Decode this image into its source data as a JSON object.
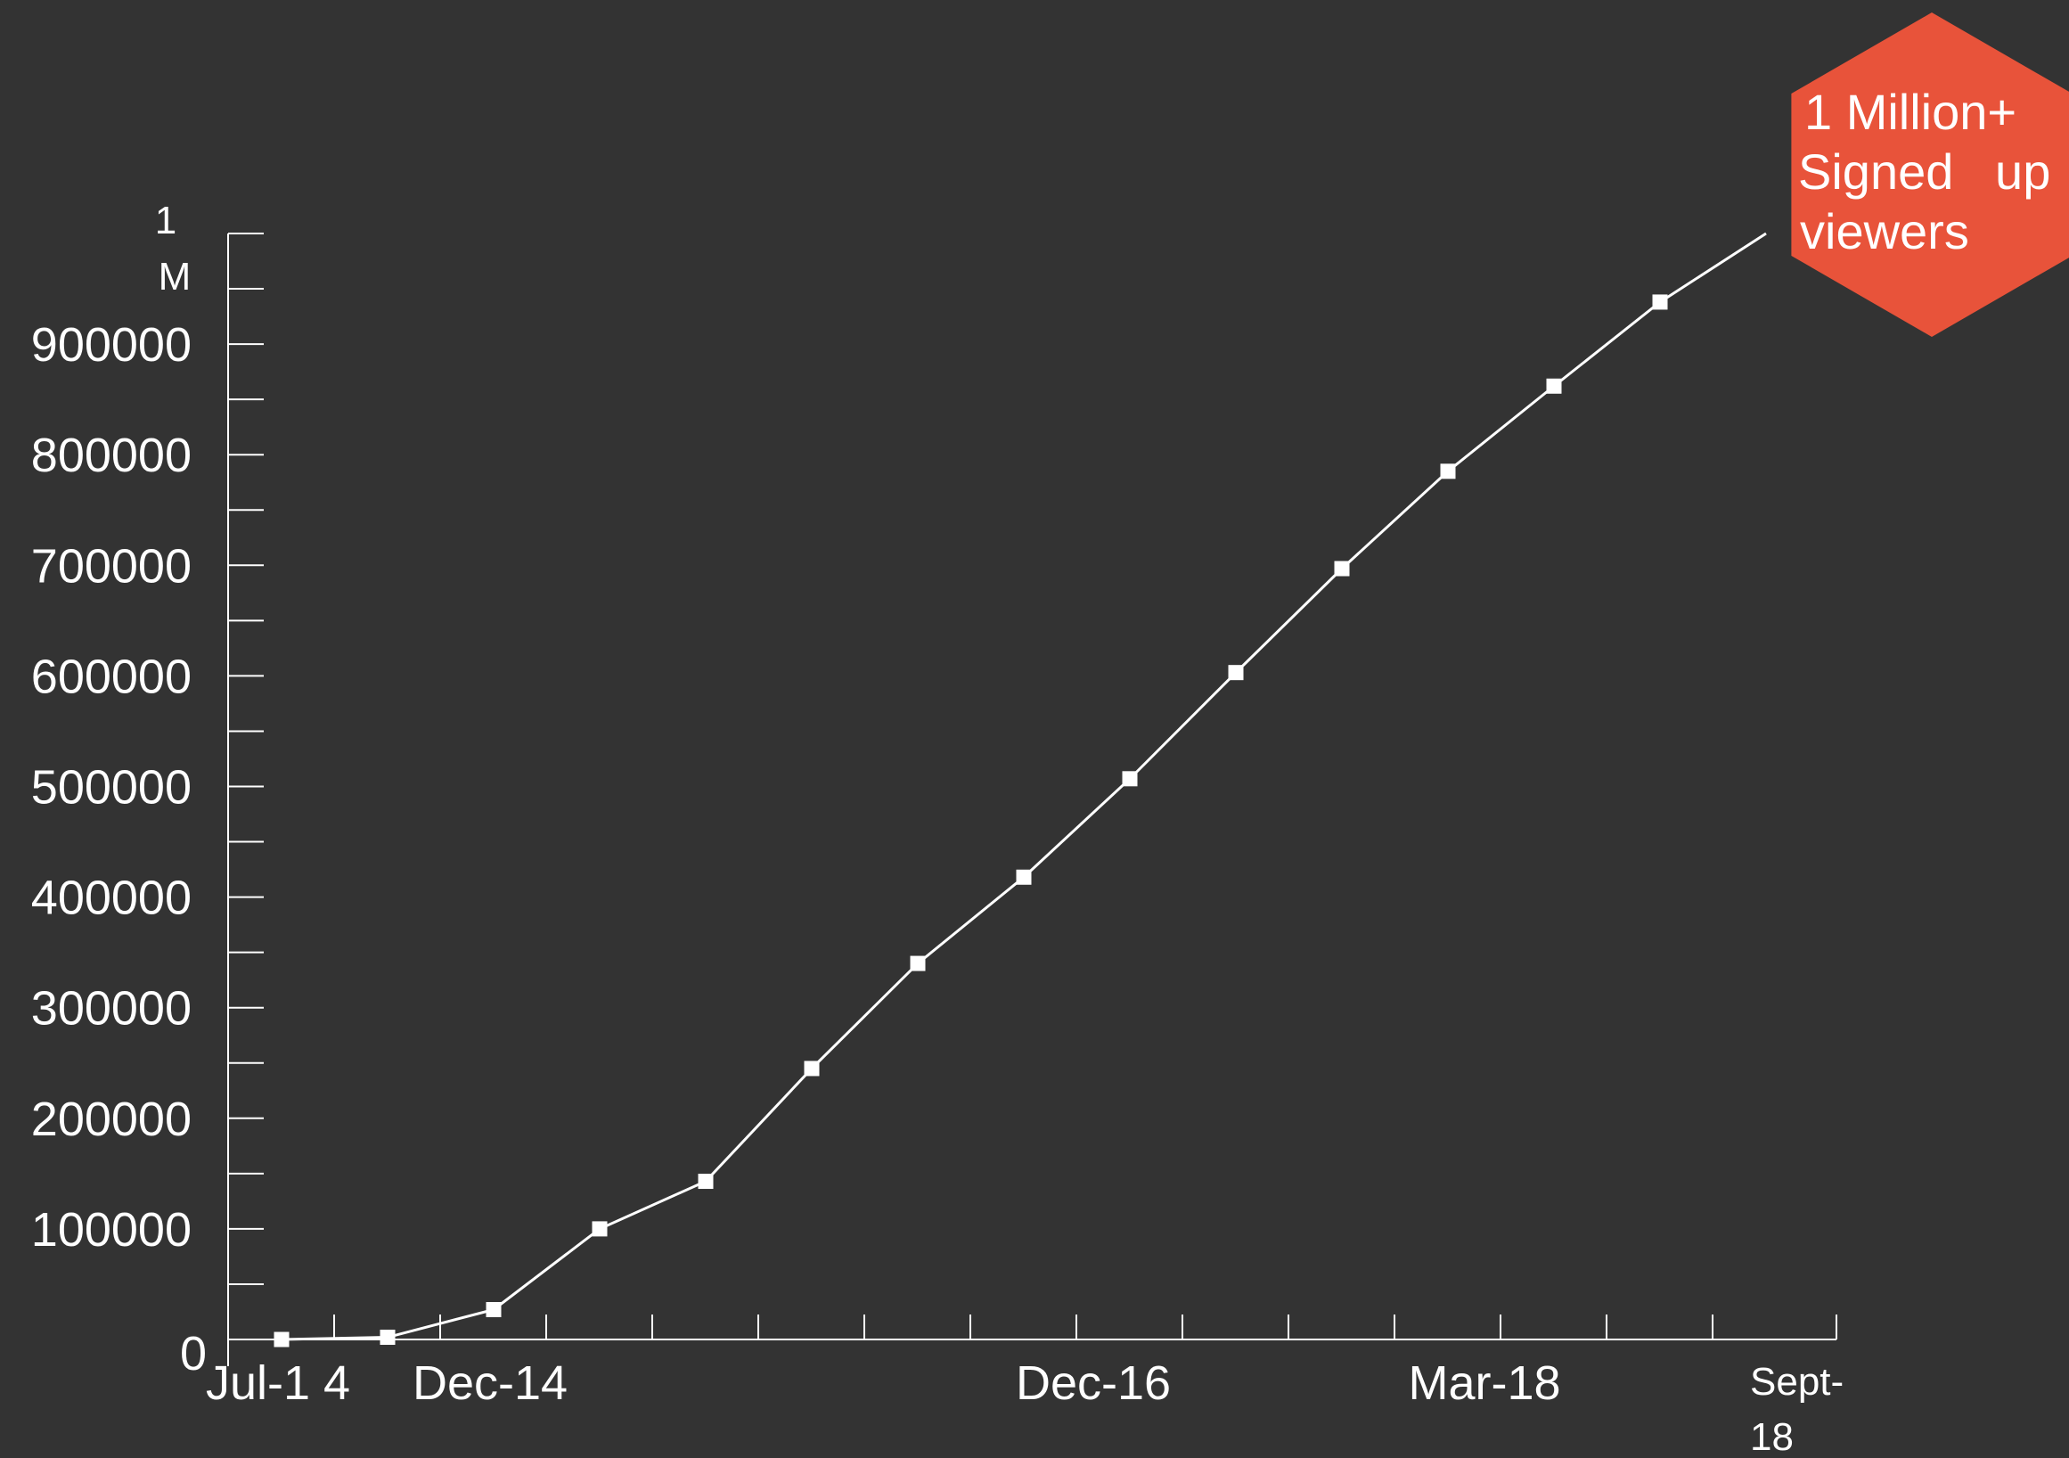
{
  "chart_data": {
    "type": "line",
    "title": "",
    "xlabel": "",
    "ylabel": "",
    "y_tick_labels": [
      "0",
      "100000",
      "200000",
      "300000",
      "400000",
      "500000",
      "600000",
      "700000",
      "800000",
      "900000"
    ],
    "y_top_label_line1": "1",
    "y_top_label_line2": "M",
    "ylim": [
      0,
      1000000
    ],
    "x_tick_labels": [
      {
        "text_lines": [
          "Jul-1 4"
        ],
        "index": 0
      },
      {
        "text_lines": [
          "Dec-14"
        ],
        "index": 2
      },
      {
        "text_lines": [
          "Dec-16"
        ],
        "index": 8
      },
      {
        "text_lines": [
          "Mar-18"
        ],
        "index": 11
      },
      {
        "text_lines": [
          "Sept-",
          "18"
        ],
        "index": 14
      }
    ],
    "series": [
      {
        "values": [
          0,
          2000,
          27000,
          100000,
          143000,
          245000,
          340000,
          418000,
          507000,
          603000,
          697000,
          785000,
          862000,
          938000,
          1000000
        ]
      }
    ],
    "grid": false,
    "colors": {
      "background": "#333333",
      "line": "#ffffff",
      "axis": "#ffffff",
      "badge": "#e8533a"
    },
    "annotation": {
      "lines": [
        "1  Million+",
        "Signed   up",
        "viewers"
      ],
      "shape": "hexagon",
      "position": "top-right"
    }
  }
}
